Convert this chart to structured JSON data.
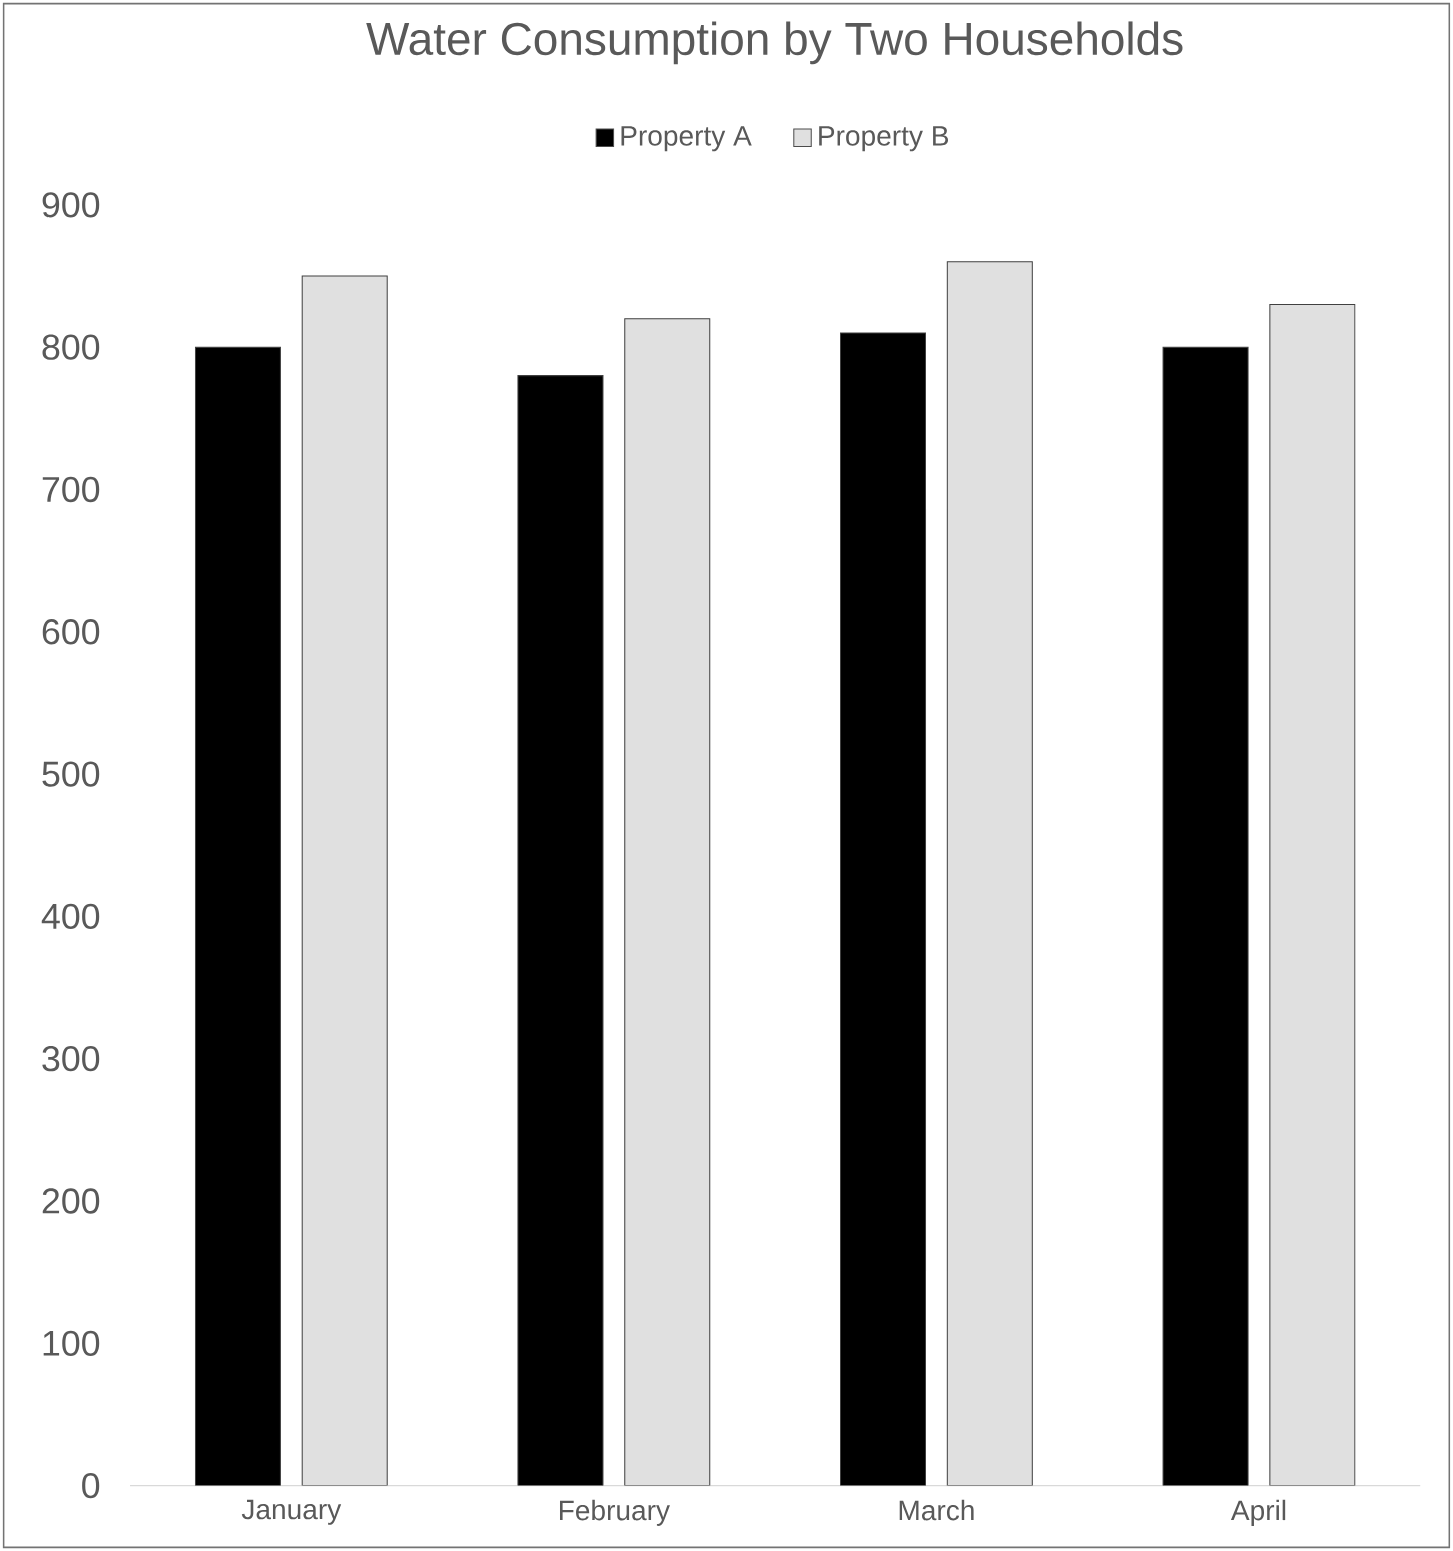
{
  "chart_data": {
    "type": "bar",
    "title": "Water Consumption by Two Households",
    "categories": [
      "January",
      "February",
      "March",
      "April"
    ],
    "series": [
      {
        "name": "Property A",
        "color": "#000000",
        "values": [
          800,
          780,
          810,
          800
        ]
      },
      {
        "name": "Property B",
        "color": "#e0e0e0",
        "values": [
          850,
          820,
          860,
          830
        ]
      }
    ],
    "ylim": [
      0,
      900
    ],
    "yticks": [
      0,
      100,
      200,
      300,
      400,
      500,
      600,
      700,
      800,
      900
    ],
    "legend": "top"
  }
}
